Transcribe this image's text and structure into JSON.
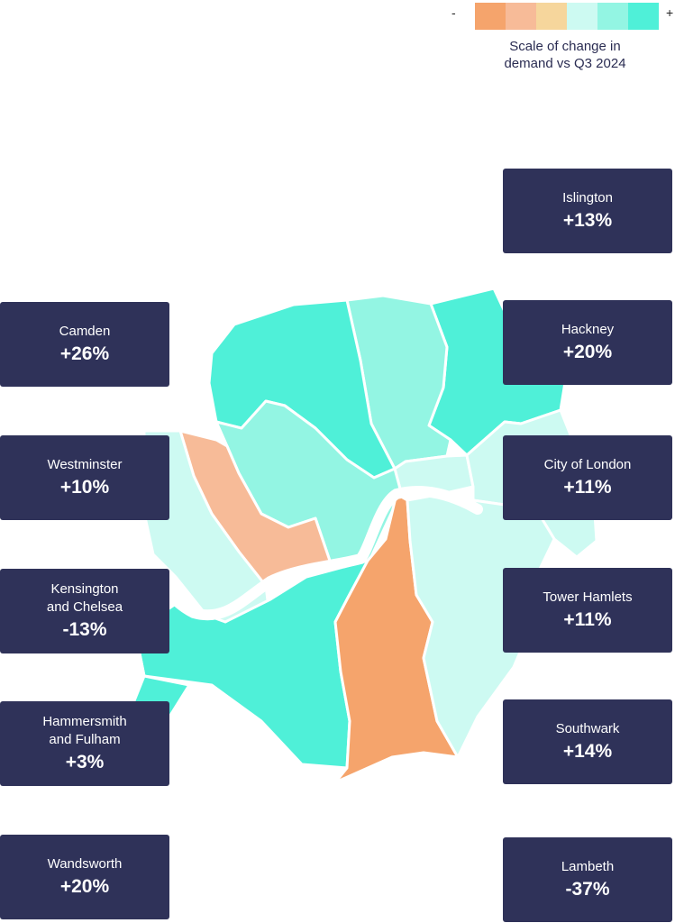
{
  "legend": {
    "minus": "-",
    "plus": "+",
    "caption": "Scale of change in\ndemand vs Q3 2024",
    "colors": [
      "#f5a46c",
      "#f7bb98",
      "#f6d69c",
      "#cdfaf2",
      "#93f5e3",
      "#4ff0d8"
    ]
  },
  "colors": {
    "card": "#2f3259",
    "river": "#ffffff"
  },
  "boroughs": [
    {
      "name": "Islington",
      "change": "+13%"
    },
    {
      "name": "Camden",
      "change": "+26%"
    },
    {
      "name": "Hackney",
      "change": "+20%"
    },
    {
      "name": "Westminster",
      "change": "+10%"
    },
    {
      "name": "City of London",
      "change": "+11%"
    },
    {
      "name": "Kensington\nand Chelsea",
      "change": "-13%"
    },
    {
      "name": "Tower Hamlets",
      "change": "+11%"
    },
    {
      "name": "Hammersmith\nand Fulham",
      "change": "+3%"
    },
    {
      "name": "Southwark",
      "change": "+14%"
    },
    {
      "name": "Wandsworth",
      "change": "+20%"
    },
    {
      "name": "Lambeth",
      "change": "-37%"
    }
  ]
}
